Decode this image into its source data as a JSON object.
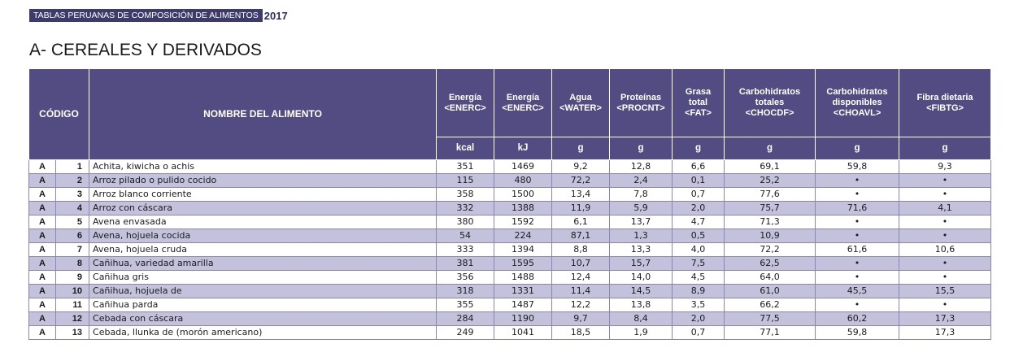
{
  "banner": {
    "label": "TABLAS PERUANAS DE COMPOSICIÓN DE ALIMENTOS",
    "year": "2017"
  },
  "section_title": "A- CEREALES Y DERIVADOS",
  "table": {
    "headers": {
      "codigo": "CÓDIGO",
      "nombre": "NOMBRE DEL ALIMENTO",
      "energia_kcal": [
        "Energía",
        "<ENERC>"
      ],
      "energia_kj": [
        "Energía",
        "<ENERC>"
      ],
      "agua": [
        "Agua",
        "<WATER>"
      ],
      "proteinas": [
        "Proteínas",
        "<PROCNT>"
      ],
      "grasa": [
        "Grasa",
        "total",
        "<FAT>"
      ],
      "choh_totales": [
        "Carbohidratos",
        "totales",
        "<CHOCDF>"
      ],
      "choh_disp": [
        "Carbohidratos",
        "disponibles",
        "<CHOAVL>"
      ],
      "fibra": [
        "Fibra dietaria",
        "<FIBTG>"
      ]
    },
    "units": [
      "kcal",
      "kJ",
      "g",
      "g",
      "g",
      "g",
      "g",
      "g"
    ],
    "rows": [
      {
        "letter": "A",
        "code": "1",
        "name": "Achita, kiwicha o achis",
        "kcal": "351",
        "kj": "1469",
        "water": "9,2",
        "protein": "12,8",
        "fat": "6,6",
        "choh_total": "69,1",
        "choh_disp": "59,8",
        "fiber": "9,3"
      },
      {
        "letter": "A",
        "code": "2",
        "name": "Arroz pilado o pulido cocido",
        "kcal": "115",
        "kj": "480",
        "water": "72,2",
        "protein": "2,4",
        "fat": "0,1",
        "choh_total": "25,2",
        "choh_disp": "•",
        "fiber": "•"
      },
      {
        "letter": "A",
        "code": "3",
        "name": "Arroz blanco corriente",
        "kcal": "358",
        "kj": "1500",
        "water": "13,4",
        "protein": "7,8",
        "fat": "0,7",
        "choh_total": "77,6",
        "choh_disp": "•",
        "fiber": "•"
      },
      {
        "letter": "A",
        "code": "4",
        "name": "Arroz con cáscara",
        "kcal": "332",
        "kj": "1388",
        "water": "11,9",
        "protein": "5,9",
        "fat": "2,0",
        "choh_total": "75,7",
        "choh_disp": "71,6",
        "fiber": "4,1"
      },
      {
        "letter": "A",
        "code": "5",
        "name": "Avena envasada",
        "kcal": "380",
        "kj": "1592",
        "water": "6,1",
        "protein": "13,7",
        "fat": "4,7",
        "choh_total": "71,3",
        "choh_disp": "•",
        "fiber": "•"
      },
      {
        "letter": "A",
        "code": "6",
        "name": "Avena, hojuela cocida",
        "kcal": "54",
        "kj": "224",
        "water": "87,1",
        "protein": "1,3",
        "fat": "0,5",
        "choh_total": "10,9",
        "choh_disp": "•",
        "fiber": "•"
      },
      {
        "letter": "A",
        "code": "7",
        "name": "Avena, hojuela cruda",
        "kcal": "333",
        "kj": "1394",
        "water": "8,8",
        "protein": "13,3",
        "fat": "4,0",
        "choh_total": "72,2",
        "choh_disp": "61,6",
        "fiber": "10,6"
      },
      {
        "letter": "A",
        "code": "8",
        "name": "Cañihua, variedad amarilla",
        "kcal": "381",
        "kj": "1595",
        "water": "10,7",
        "protein": "15,7",
        "fat": "7,5",
        "choh_total": "62,5",
        "choh_disp": "•",
        "fiber": "•"
      },
      {
        "letter": "A",
        "code": "9",
        "name": "Cañihua gris",
        "kcal": "356",
        "kj": "1488",
        "water": "12,4",
        "protein": "14,0",
        "fat": "4,5",
        "choh_total": "64,0",
        "choh_disp": "•",
        "fiber": "•"
      },
      {
        "letter": "A",
        "code": "10",
        "name": "Cañihua, hojuela de",
        "kcal": "318",
        "kj": "1331",
        "water": "11,4",
        "protein": "14,5",
        "fat": "8,9",
        "choh_total": "61,0",
        "choh_disp": "45,5",
        "fiber": "15,5"
      },
      {
        "letter": "A",
        "code": "11",
        "name": "Cañihua parda",
        "kcal": "355",
        "kj": "1487",
        "water": "12,2",
        "protein": "13,8",
        "fat": "3,5",
        "choh_total": "66,2",
        "choh_disp": "•",
        "fiber": "•"
      },
      {
        "letter": "A",
        "code": "12",
        "name": "Cebada con cáscara",
        "kcal": "284",
        "kj": "1190",
        "water": "9,7",
        "protein": "8,4",
        "fat": "2,0",
        "choh_total": "77,5",
        "choh_disp": "60,2",
        "fiber": "17,3"
      },
      {
        "letter": "A",
        "code": "13",
        "name": "Cebada, llunka de (morón americano)",
        "kcal": "249",
        "kj": "1041",
        "water": "18,5",
        "protein": "1,9",
        "fat": "0,7",
        "choh_total": "77,1",
        "choh_disp": "59,8",
        "fiber": "17,3"
      }
    ]
  }
}
